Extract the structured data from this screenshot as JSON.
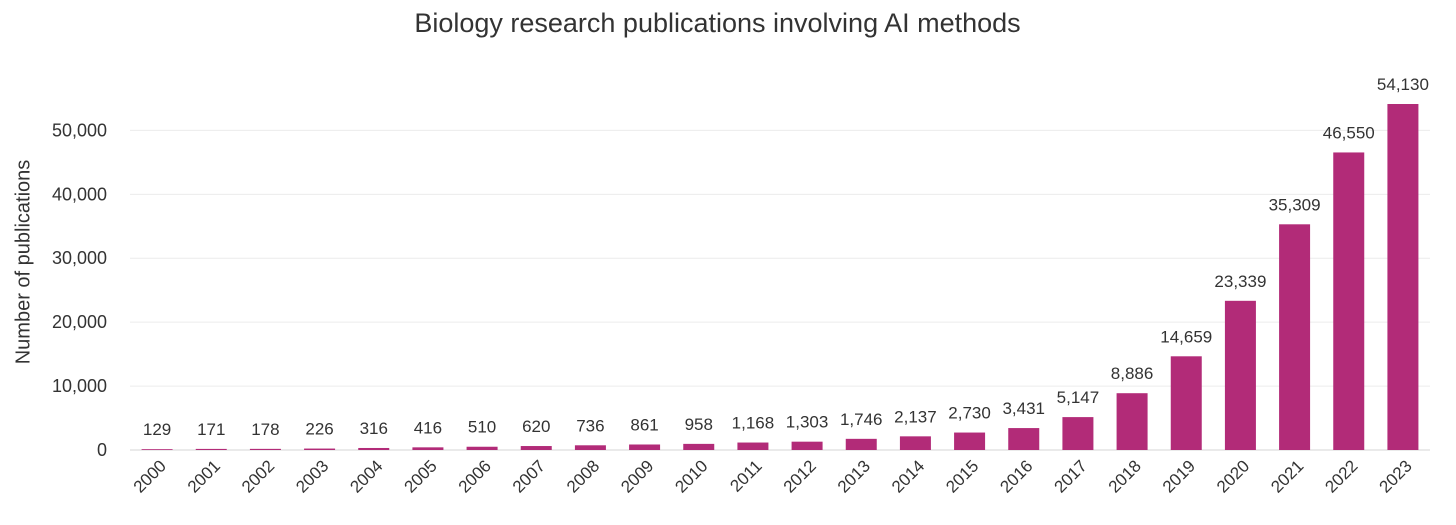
{
  "chart_data": {
    "type": "bar",
    "title": "Biology research publications involving AI methods",
    "xlabel": "",
    "ylabel": "Number of publications",
    "categories": [
      "2000",
      "2001",
      "2002",
      "2003",
      "2004",
      "2005",
      "2006",
      "2007",
      "2008",
      "2009",
      "2010",
      "2011",
      "2012",
      "2013",
      "2014",
      "2015",
      "2016",
      "2017",
      "2018",
      "2019",
      "2020",
      "2021",
      "2022",
      "2023"
    ],
    "values": [
      129,
      171,
      178,
      226,
      316,
      416,
      510,
      620,
      736,
      861,
      958,
      1168,
      1303,
      1746,
      2137,
      2730,
      3431,
      5147,
      8886,
      14659,
      23339,
      35309,
      46550,
      54130
    ],
    "data_labels": [
      "129",
      "171",
      "178",
      "226",
      "316",
      "416",
      "510",
      "620",
      "736",
      "861",
      "958",
      "1,168",
      "1,303",
      "1,746",
      "2,137",
      "2,730",
      "3,431",
      "5,147",
      "8,886",
      "14,659",
      "23,339",
      "35,309",
      "46,550",
      "54,130"
    ],
    "yticks": [
      "0",
      "10,000",
      "20,000",
      "30,000",
      "40,000",
      "50,000"
    ],
    "ytick_values": [
      0,
      10000,
      20000,
      30000,
      40000,
      50000
    ],
    "ylim": [
      0,
      54130
    ],
    "grid": true,
    "legend": "none",
    "bar_color": "#b22b78",
    "grid_color": "#ececec"
  }
}
